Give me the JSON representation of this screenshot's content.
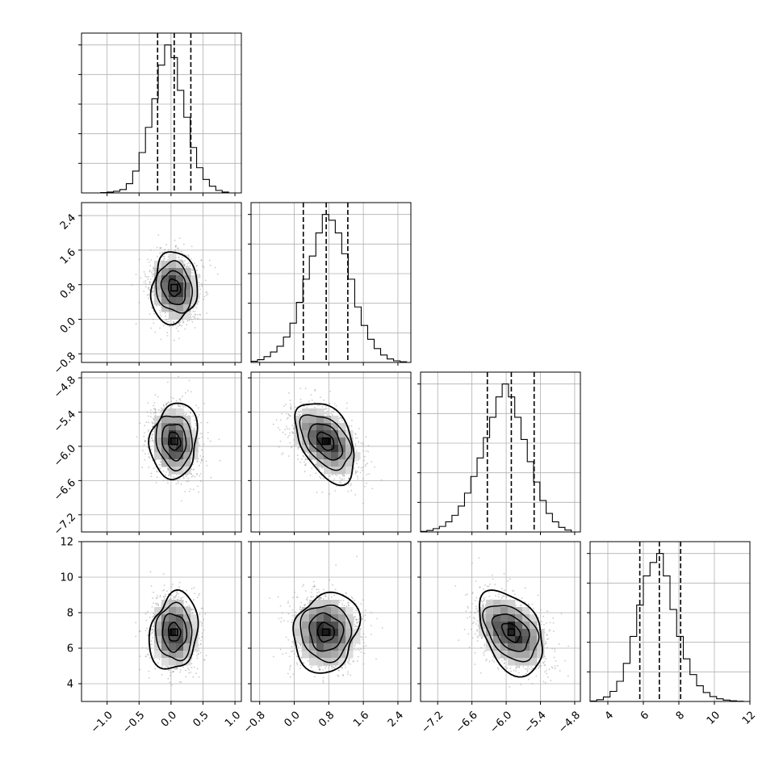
{
  "chart_data": {
    "type": "corner",
    "grid": true,
    "parameters": [
      {
        "index": 0,
        "range": [
          -1.4,
          1.1
        ],
        "ticks": [
          -1.0,
          -0.5,
          0.0,
          0.5,
          1.0
        ],
        "tick_labels": [
          "−1.0",
          "−0.5",
          "0.0",
          "0.5",
          "1.0"
        ],
        "quantiles": [
          -0.21,
          0.05,
          0.31
        ]
      },
      {
        "index": 1,
        "range": [
          -1.0,
          2.7
        ],
        "ticks": [
          -0.8,
          0.0,
          0.8,
          1.6,
          2.4
        ],
        "tick_labels": [
          "−0.8",
          "0.0",
          "0.8",
          "1.6",
          "2.4"
        ],
        "quantiles": [
          0.21,
          0.74,
          1.24
        ]
      },
      {
        "index": 2,
        "range": [
          -7.5,
          -4.7
        ],
        "ticks": [
          -7.2,
          -6.6,
          -6.0,
          -5.4,
          -4.8
        ],
        "tick_labels": [
          "−7.2",
          "−6.6",
          "−6.0",
          "−5.4",
          "−4.8"
        ],
        "quantiles": [
          -6.33,
          -5.91,
          -5.51
        ]
      },
      {
        "index": 3,
        "range": [
          3.0,
          12.0
        ],
        "ticks": [
          4,
          6,
          8,
          10,
          12
        ],
        "tick_labels": [
          "4",
          "6",
          "8",
          "10",
          "12"
        ],
        "quantiles": [
          5.8,
          6.9,
          8.1
        ]
      }
    ],
    "histograms": [
      {
        "param": 0,
        "edges": [
          -1.4,
          -1.3,
          -1.2,
          -1.1,
          -1.0,
          -0.9,
          -0.8,
          -0.7,
          -0.6,
          -0.5,
          -0.4,
          -0.3,
          -0.2,
          -0.1,
          0.0,
          0.1,
          0.2,
          0.3,
          0.4,
          0.5,
          0.6,
          0.7,
          0.8,
          0.9,
          1.0
        ],
        "counts": [
          0,
          0,
          0,
          2,
          5,
          10,
          20,
          55,
          130,
          240,
          390,
          560,
          760,
          880,
          805,
          610,
          450,
          270,
          150,
          80,
          40,
          15,
          5,
          0
        ]
      },
      {
        "param": 1,
        "edges": [
          -1.0,
          -0.85,
          -0.7,
          -0.55,
          -0.4,
          -0.25,
          -0.1,
          0.05,
          0.2,
          0.35,
          0.5,
          0.65,
          0.8,
          0.95,
          1.1,
          1.25,
          1.4,
          1.55,
          1.7,
          1.85,
          2.0,
          2.15,
          2.3,
          2.45,
          2.6
        ],
        "counts": [
          5,
          12,
          25,
          45,
          70,
          110,
          170,
          260,
          360,
          460,
          560,
          640,
          615,
          560,
          470,
          360,
          240,
          160,
          100,
          60,
          32,
          15,
          7,
          3
        ]
      },
      {
        "param": 2,
        "edges": [
          -7.5,
          -7.39,
          -7.28,
          -7.17,
          -7.06,
          -6.95,
          -6.84,
          -6.73,
          -6.62,
          -6.51,
          -6.4,
          -6.29,
          -6.18,
          -6.07,
          -5.96,
          -5.85,
          -5.74,
          -5.63,
          -5.52,
          -5.41,
          -5.3,
          -5.19,
          -5.08,
          -4.97,
          -4.86
        ],
        "counts": [
          3,
          8,
          18,
          30,
          55,
          90,
          140,
          210,
          300,
          400,
          510,
          620,
          730,
          800,
          730,
          620,
          500,
          380,
          270,
          170,
          100,
          55,
          25,
          10
        ]
      },
      {
        "param": 3,
        "edges": [
          3.0,
          3.375,
          3.75,
          4.125,
          4.5,
          4.875,
          5.25,
          5.625,
          6.0,
          6.375,
          6.75,
          7.125,
          7.5,
          7.875,
          8.25,
          8.625,
          9.0,
          9.375,
          9.75,
          10.125,
          10.5,
          10.875,
          11.25,
          11.625,
          12.0
        ],
        "counts": [
          2,
          8,
          20,
          45,
          90,
          170,
          290,
          430,
          560,
          620,
          660,
          560,
          410,
          290,
          190,
          120,
          70,
          40,
          22,
          12,
          6,
          3,
          1,
          0
        ]
      }
    ],
    "pairs": [
      {
        "x_param": 0,
        "y_param": 1,
        "center": [
          0.05,
          0.73
        ],
        "sigma": [
          0.18,
          0.37
        ],
        "rho": -0.15
      },
      {
        "x_param": 0,
        "y_param": 2,
        "center": [
          0.05,
          -5.91
        ],
        "sigma": [
          0.18,
          0.3
        ],
        "rho": -0.12
      },
      {
        "x_param": 1,
        "y_param": 2,
        "center": [
          0.73,
          -5.91
        ],
        "sigma": [
          0.37,
          0.3
        ],
        "rho": -0.45
      },
      {
        "x_param": 0,
        "y_param": 3,
        "center": [
          0.05,
          6.9
        ],
        "sigma": [
          0.18,
          1.0
        ],
        "rho": -0.05
      },
      {
        "x_param": 1,
        "y_param": 3,
        "center": [
          0.73,
          6.9
        ],
        "sigma": [
          0.37,
          1.0
        ],
        "rho": -0.05
      },
      {
        "x_param": 2,
        "y_param": 3,
        "center": [
          -5.91,
          6.9
        ],
        "sigma": [
          0.3,
          1.0
        ],
        "rho": -0.4
      }
    ],
    "contour_levels": [
      0.5,
      1.0,
      1.5,
      2.0
    ],
    "colors": {
      "line": "#000000",
      "grid": "#b0b0b0",
      "scatter": "#8c8c8c",
      "density_dark": "#303030"
    }
  }
}
